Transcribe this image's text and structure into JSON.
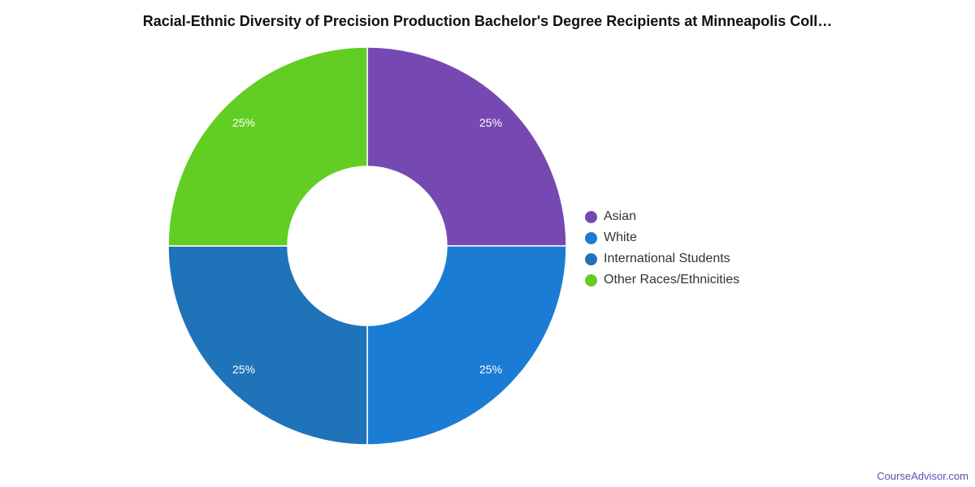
{
  "chart_data": {
    "type": "pie",
    "title": "Racial-Ethnic Diversity of Precision Production Bachelor's Degree Recipients at Minneapolis Coll…",
    "donut": true,
    "legend_position": "right",
    "slices": [
      {
        "name": "Asian",
        "value": 25,
        "label": "25%",
        "color": "#7549b1"
      },
      {
        "name": "White",
        "value": 25,
        "label": "25%",
        "color": "#1a7cd4"
      },
      {
        "name": "International Students",
        "value": 25,
        "label": "25%",
        "color": "#1f73b8"
      },
      {
        "name": "Other Races/Ethnicities",
        "value": 25,
        "label": "25%",
        "color": "#62cd23"
      }
    ]
  },
  "watermark": "CourseAdvisor.com"
}
